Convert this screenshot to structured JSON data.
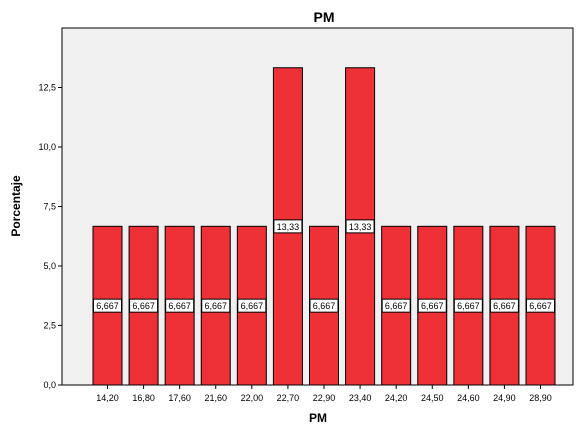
{
  "chart_data": {
    "type": "bar",
    "title": "PM",
    "xlabel": "PM",
    "ylabel": "Porcentaje",
    "categories": [
      "14,20",
      "16,80",
      "17,60",
      "21,60",
      "22,00",
      "22,70",
      "22,90",
      "23,40",
      "24,20",
      "24,50",
      "24,60",
      "24,90",
      "28,90"
    ],
    "values": [
      6.667,
      6.667,
      6.667,
      6.667,
      6.667,
      13.33,
      6.667,
      13.33,
      6.667,
      6.667,
      6.667,
      6.667,
      6.667
    ],
    "data_labels": [
      "6,667",
      "6,667",
      "6,667",
      "6,667",
      "6,667",
      "13,33",
      "6,667",
      "13,33",
      "6,667",
      "6,667",
      "6,667",
      "6,667",
      "6,667"
    ],
    "ylim": [
      0,
      15
    ],
    "yticks": [
      0,
      2.5,
      5,
      7.5,
      10,
      12.5
    ],
    "ytick_labels": [
      "0,0",
      "2,5",
      "5,0",
      "7,5",
      "10,0",
      "12,5"
    ],
    "grid": false,
    "colors": {
      "bar_fill": "#ee3137",
      "bar_stroke": "#000000",
      "plot_background": "#f0f0f0",
      "plot_border": "#000000"
    }
  }
}
